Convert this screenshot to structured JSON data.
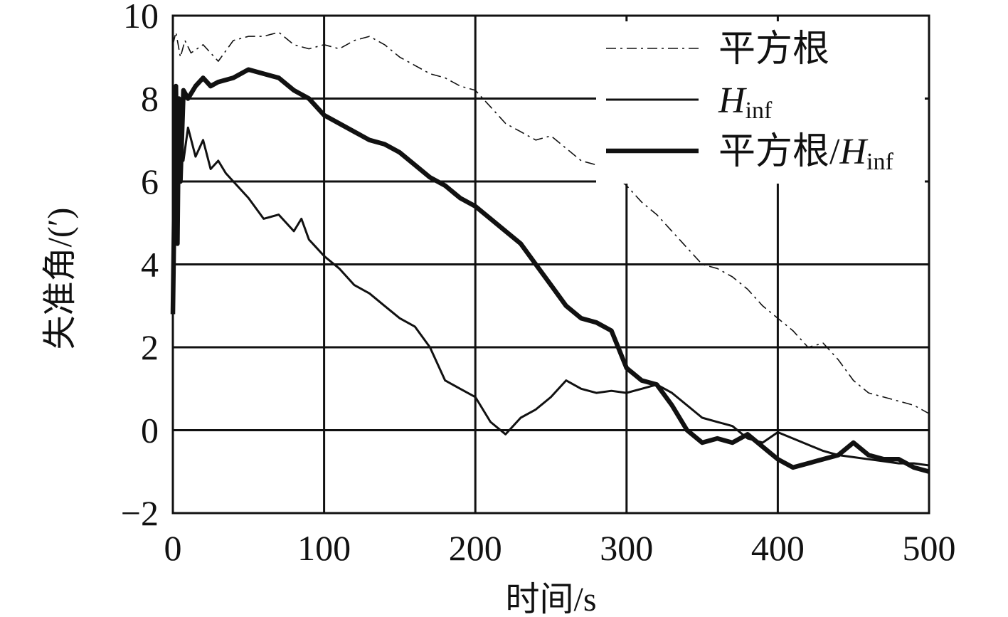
{
  "chart_data": {
    "type": "line",
    "xlabel": "时间/s",
    "ylabel": "失准角/(′)",
    "xlim": [
      0,
      500
    ],
    "ylim": [
      -2,
      10
    ],
    "xticks": [
      "0",
      "100",
      "200",
      "300",
      "400",
      "500"
    ],
    "yticks": [
      "−2",
      "0",
      "2",
      "4",
      "6",
      "8",
      "10"
    ],
    "grid": true,
    "legend_position": "top-right",
    "series": [
      {
        "name": "平方根",
        "legend_main": "平方根",
        "legend_sub": "",
        "style": "dash-dot",
        "width": "thin",
        "color": "#111111",
        "x": [
          0,
          2,
          5,
          8,
          12,
          20,
          30,
          40,
          50,
          60,
          70,
          80,
          90,
          100,
          110,
          120,
          130,
          140,
          150,
          160,
          170,
          180,
          190,
          200,
          210,
          220,
          230,
          240,
          250,
          260,
          270,
          280,
          290,
          300,
          310,
          320,
          330,
          340,
          350,
          360,
          370,
          380,
          390,
          400,
          410,
          420,
          430,
          440,
          450,
          460,
          470,
          480,
          490,
          500
        ],
        "y": [
          9.3,
          9.6,
          9.0,
          9.4,
          9.1,
          9.3,
          8.9,
          9.4,
          9.5,
          9.5,
          9.6,
          9.3,
          9.2,
          9.3,
          9.2,
          9.4,
          9.5,
          9.3,
          9.0,
          8.8,
          8.6,
          8.5,
          8.3,
          8.2,
          7.8,
          7.4,
          7.2,
          7.0,
          7.1,
          6.8,
          6.5,
          6.4,
          6.2,
          5.9,
          5.5,
          5.2,
          4.8,
          4.4,
          4.0,
          3.9,
          3.7,
          3.4,
          3.0,
          2.7,
          2.4,
          2.0,
          2.1,
          1.7,
          1.2,
          0.9,
          0.8,
          0.7,
          0.6,
          0.4
        ]
      },
      {
        "name": "Hinf",
        "legend_main": "H",
        "legend_sub": "inf",
        "style": "solid",
        "width": "medium",
        "color": "#111111",
        "x": [
          0,
          1,
          2,
          3,
          5,
          7,
          10,
          15,
          20,
          25,
          30,
          35,
          40,
          50,
          60,
          70,
          80,
          85,
          90,
          95,
          100,
          110,
          120,
          130,
          140,
          150,
          160,
          170,
          180,
          190,
          200,
          210,
          220,
          230,
          240,
          250,
          260,
          270,
          280,
          290,
          300,
          310,
          320,
          330,
          340,
          350,
          360,
          370,
          380,
          390,
          400,
          410,
          420,
          430,
          440,
          450,
          460,
          470,
          480,
          490,
          500
        ],
        "y": [
          2.8,
          4.0,
          6.5,
          5.5,
          7.2,
          6.5,
          7.3,
          6.6,
          7.0,
          6.3,
          6.5,
          6.2,
          6.0,
          5.6,
          5.1,
          5.2,
          4.8,
          5.1,
          4.6,
          4.4,
          4.2,
          3.9,
          3.5,
          3.3,
          3.0,
          2.7,
          2.5,
          2.0,
          1.2,
          1.0,
          0.8,
          0.2,
          -0.1,
          0.3,
          0.5,
          0.8,
          1.2,
          1.0,
          0.9,
          0.95,
          0.9,
          1.0,
          1.1,
          0.9,
          0.6,
          0.3,
          0.2,
          0.1,
          -0.2,
          -0.3,
          -0.05,
          -0.2,
          -0.35,
          -0.5,
          -0.6,
          -0.65,
          -0.7,
          -0.75,
          -0.8,
          -0.8,
          -0.85
        ]
      },
      {
        "name": "平方根/Hinf",
        "legend_main": "平方根/H",
        "legend_sub": "inf",
        "style": "solid",
        "width": "thick",
        "color": "#111111",
        "x": [
          0,
          1,
          2,
          3,
          4,
          5,
          7,
          10,
          15,
          20,
          25,
          30,
          40,
          50,
          60,
          70,
          80,
          90,
          100,
          110,
          120,
          130,
          140,
          150,
          160,
          170,
          180,
          190,
          200,
          210,
          220,
          230,
          240,
          250,
          260,
          270,
          280,
          290,
          300,
          310,
          320,
          330,
          340,
          350,
          360,
          370,
          380,
          390,
          400,
          410,
          420,
          430,
          440,
          450,
          460,
          470,
          480,
          490,
          500
        ],
        "y": [
          2.8,
          5.5,
          8.3,
          4.5,
          8.0,
          6.0,
          8.2,
          8.0,
          8.3,
          8.5,
          8.3,
          8.4,
          8.5,
          8.7,
          8.6,
          8.5,
          8.2,
          8.0,
          7.6,
          7.4,
          7.2,
          7.0,
          6.9,
          6.7,
          6.4,
          6.1,
          5.9,
          5.6,
          5.4,
          5.1,
          4.8,
          4.5,
          4.0,
          3.5,
          3.0,
          2.7,
          2.6,
          2.4,
          1.5,
          1.2,
          1.1,
          0.6,
          0.0,
          -0.3,
          -0.2,
          -0.3,
          -0.1,
          -0.4,
          -0.7,
          -0.9,
          -0.8,
          -0.7,
          -0.6,
          -0.3,
          -0.6,
          -0.7,
          -0.7,
          -0.9,
          -1.0
        ]
      }
    ]
  }
}
